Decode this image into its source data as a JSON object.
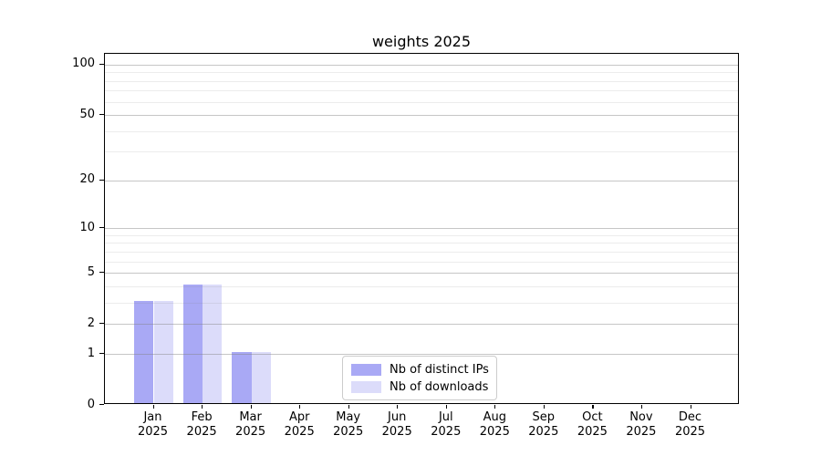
{
  "chart_data": {
    "type": "bar",
    "title": "weights 2025",
    "categories": [
      "Jan 2025",
      "Feb 2025",
      "Mar 2025",
      "Apr 2025",
      "May 2025",
      "Jun 2025",
      "Jul 2025",
      "Aug 2025",
      "Sep 2025",
      "Oct 2025",
      "Nov 2025",
      "Dec 2025"
    ],
    "series": [
      {
        "name": "Nb of distinct IPs",
        "color": "#a9a9f5",
        "values": [
          3,
          4,
          1,
          0,
          0,
          0,
          0,
          0,
          0,
          0,
          0,
          0
        ]
      },
      {
        "name": "Nb of downloads",
        "color": "#dcdcfa",
        "values": [
          3,
          4,
          1,
          0,
          0,
          0,
          0,
          0,
          0,
          0,
          0,
          0
        ]
      }
    ],
    "xlabel": "",
    "ylabel": "",
    "yscale": "log1p",
    "yticks": [
      0,
      1,
      2,
      5,
      10,
      20,
      50,
      100
    ],
    "yminorticks": [
      3,
      4,
      6,
      7,
      8,
      9,
      30,
      40,
      60,
      70,
      80,
      90
    ],
    "ylim": [
      0,
      116
    ],
    "grid": "horizontal",
    "legend_position": "lower center"
  }
}
